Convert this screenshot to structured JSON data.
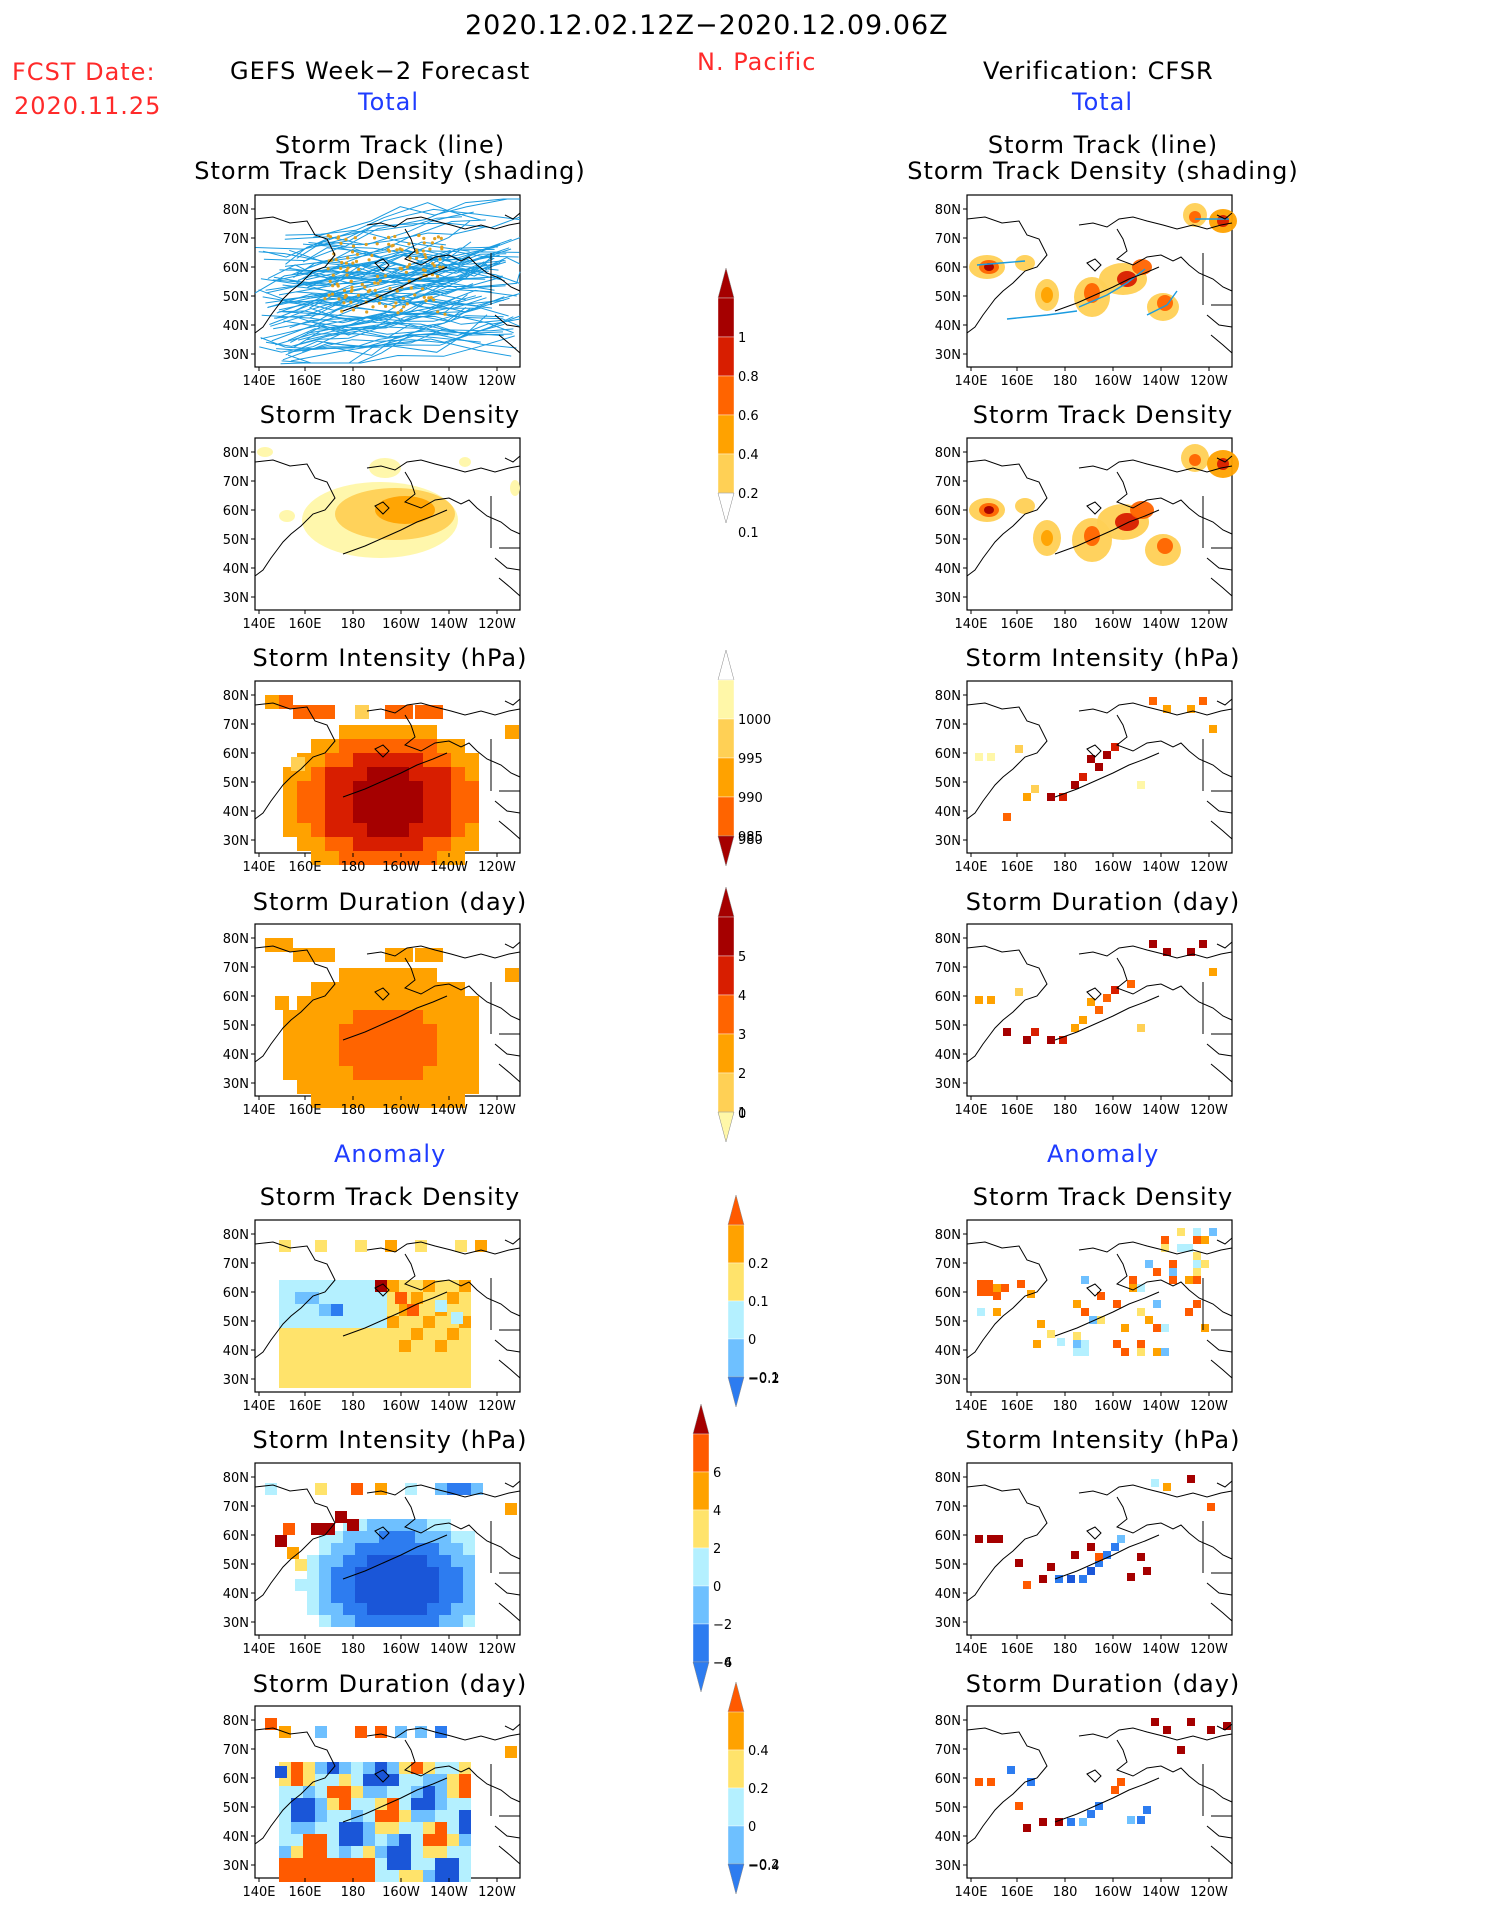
{
  "header": {
    "period": "2020.12.02.12Z−2020.12.09.06Z",
    "region": "N. Pacific",
    "fcst_label": "FCST Date:",
    "fcst_date": "2020.11.25",
    "left_title": "GEFS Week−2 Forecast",
    "right_title": "Verification: CFSR",
    "total_label": "Total",
    "anomaly_label": "Anomaly"
  },
  "panel_titles": {
    "track_line": "Storm Track (line)",
    "track_shading": "Storm Track Density (shading)",
    "density": "Storm Track Density",
    "intensity": "Storm Intensity (hPa)",
    "duration": "Storm Duration (day)"
  },
  "axes": {
    "lat_labels": [
      "80N",
      "70N",
      "60N",
      "50N",
      "40N",
      "30N"
    ],
    "lon_labels": [
      "140E",
      "160E",
      "180",
      "160W",
      "140W",
      "120W"
    ]
  },
  "colorbars": {
    "density_total": [
      "1",
      "0.8",
      "0.6",
      "0.4",
      "0.2",
      "0.1"
    ],
    "intensity_total": [
      "1000",
      "995",
      "990",
      "985",
      "980"
    ],
    "duration_total": [
      "5",
      "4",
      "3",
      "2",
      "1",
      "0"
    ],
    "density_anomaly": [
      "0.2",
      "0.1",
      "0",
      "−0.1",
      "−0.2"
    ],
    "intensity_anomaly": [
      "6",
      "4",
      "2",
      "0",
      "−2",
      "−4",
      "−6"
    ],
    "duration_anomaly": [
      "0.4",
      "0.2",
      "0",
      "−0.2",
      "−0.4"
    ]
  },
  "colors": {
    "total_scale": [
      "#fff7a8",
      "#ffd055",
      "#ffa200",
      "#ff6400",
      "#d81e00",
      "#a50000"
    ],
    "anom_warm": [
      "#ffe36b",
      "#ffa200",
      "#ff5a00",
      "#a50000"
    ],
    "anom_cool": [
      "#b4f0ff",
      "#6ec0ff",
      "#2d7cf0",
      "#1a56d8"
    ],
    "track_line": "#1a9be0"
  }
}
